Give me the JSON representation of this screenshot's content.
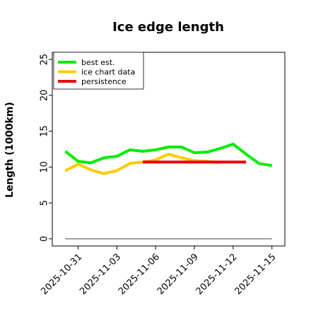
{
  "chart_data": {
    "type": "line",
    "title": "Ice edge length",
    "ylabel": "Length (1000km)",
    "xlabel": "",
    "ylim": [
      -1,
      26
    ],
    "xlim": [
      "2025-10-29",
      "2025-11-16"
    ],
    "yticks": [
      0,
      5,
      10,
      15,
      20,
      25
    ],
    "xticks": [
      "2025-10-31",
      "2025-11-03",
      "2025-11-06",
      "2025-11-09",
      "2025-11-12",
      "2025-11-15"
    ],
    "grid": false,
    "legend_position": "top-left",
    "series": [
      {
        "name": "best est.",
        "color": "#00ee00",
        "x": [
          "2025-10-30",
          "2025-10-31",
          "2025-11-01",
          "2025-11-02",
          "2025-11-03",
          "2025-11-04",
          "2025-11-05",
          "2025-11-06",
          "2025-11-07",
          "2025-11-08",
          "2025-11-09",
          "2025-11-10",
          "2025-11-11",
          "2025-11-12",
          "2025-11-13",
          "2025-11-14",
          "2025-11-15"
        ],
        "values": [
          12.2,
          10.8,
          10.6,
          11.3,
          11.5,
          12.4,
          12.2,
          12.4,
          12.8,
          12.8,
          12.0,
          12.1,
          12.6,
          13.2,
          11.8,
          10.5,
          10.2
        ]
      },
      {
        "name": "ice chart data",
        "color": "#ffcc00",
        "x": [
          "2025-10-30",
          "2025-10-31",
          "2025-11-01",
          "2025-11-02",
          "2025-11-03",
          "2025-11-04",
          "2025-11-05",
          "2025-11-06",
          "2025-11-07",
          "2025-11-08",
          "2025-11-09",
          "2025-11-10",
          "2025-11-11"
        ],
        "values": [
          9.5,
          10.4,
          9.6,
          9.1,
          9.5,
          10.5,
          10.7,
          11.0,
          11.8,
          11.3,
          10.9,
          10.8,
          10.6
        ]
      },
      {
        "name": "persistence",
        "color": "#ee0000",
        "x": [
          "2025-11-05",
          "2025-11-06",
          "2025-11-07",
          "2025-11-08",
          "2025-11-09",
          "2025-11-10",
          "2025-11-11",
          "2025-11-12",
          "2025-11-13"
        ],
        "values": [
          10.7,
          10.7,
          10.7,
          10.7,
          10.7,
          10.7,
          10.7,
          10.7,
          10.7
        ]
      },
      {
        "name": "",
        "color": "#808080",
        "x": [
          "2025-10-30",
          "2025-11-15"
        ],
        "values": [
          0,
          0
        ]
      }
    ]
  }
}
